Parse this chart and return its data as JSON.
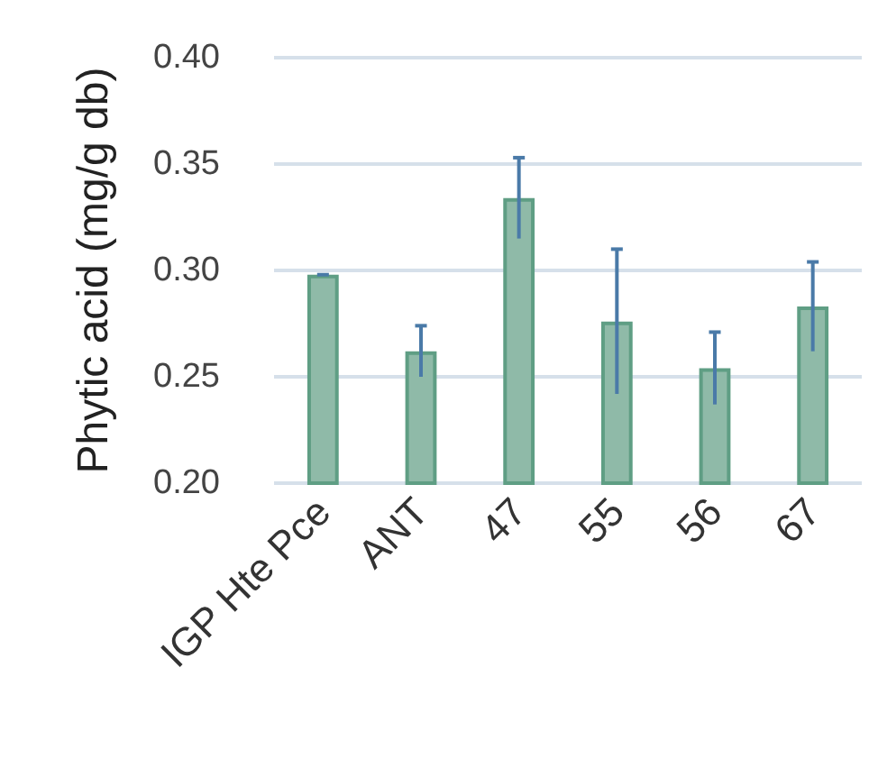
{
  "chart_data": {
    "type": "bar",
    "ylabel": "Phytic acid (mg/g db)",
    "categories": [
      "IGP Hte Pce",
      "ANT",
      "47",
      "55",
      "56",
      "67"
    ],
    "values": [
      0.298,
      0.262,
      0.334,
      0.276,
      0.254,
      0.283
    ],
    "errors": [
      0,
      0.012,
      0.019,
      0.034,
      0.017,
      0.021
    ],
    "color": "#8fbaa8",
    "ylim": [
      0.2,
      0.4
    ],
    "yticks": [
      {
        "value": 0.2,
        "label": "0.20"
      },
      0.25,
      {
        "value": 0.3,
        "label": "0.30"
      },
      0.35,
      {
        "value": 0.4,
        "label": "0.40"
      }
    ],
    "grid": "y"
  }
}
